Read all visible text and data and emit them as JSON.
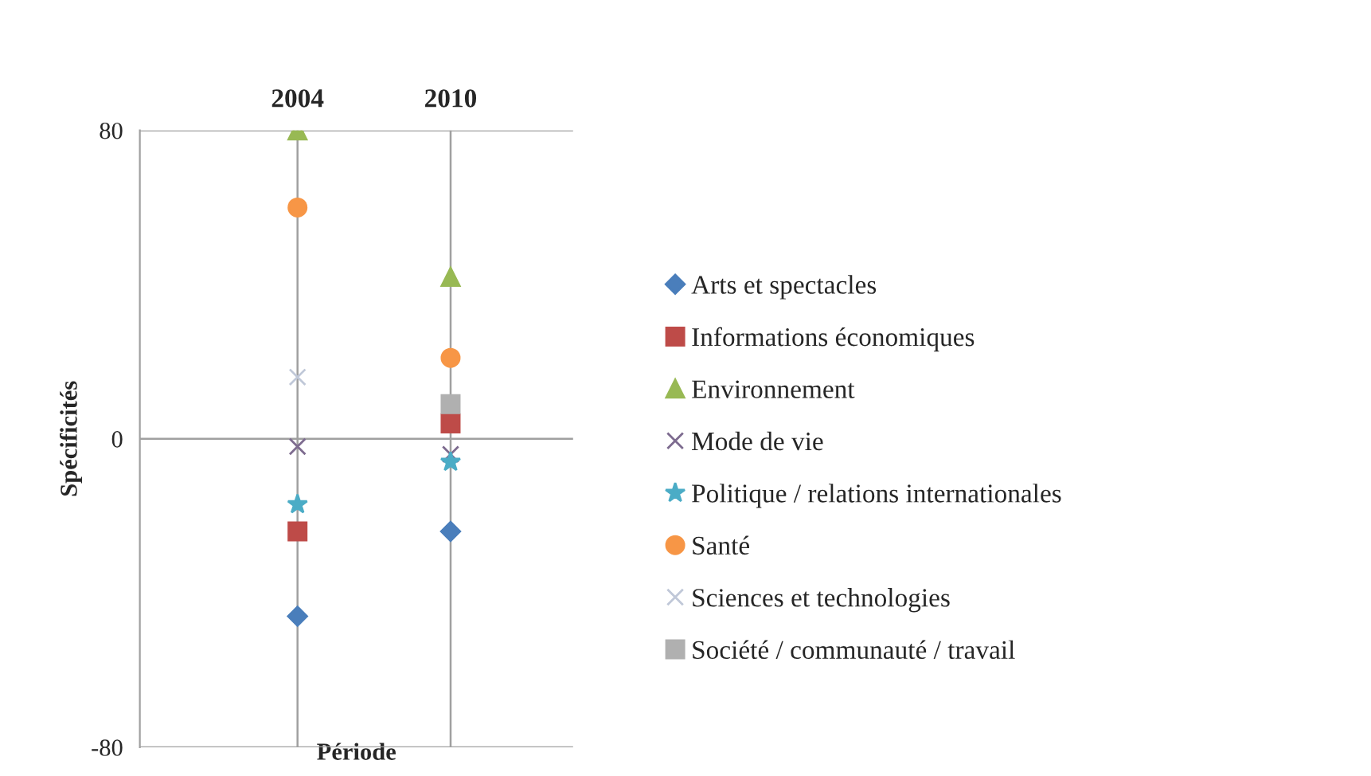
{
  "chart_data": {
    "type": "scatter",
    "xlabel": "Période",
    "ylabel": "Spécificités",
    "categories": [
      "2004",
      "2010"
    ],
    "ylim": [
      -80,
      80
    ],
    "yticks": [
      -80,
      0,
      80
    ],
    "grid": true,
    "legend": "right",
    "series": [
      {
        "name": "Arts et spectacles",
        "color": "#4a7ebb",
        "marker": "diamond",
        "values": [
          -46,
          -24
        ]
      },
      {
        "name": "Informations économiques",
        "color": "#be4b48",
        "marker": "square",
        "values": [
          -24,
          4
        ]
      },
      {
        "name": "Environnement",
        "color": "#98b954",
        "marker": "triangle",
        "values": [
          80,
          42
        ]
      },
      {
        "name": "Mode de vie",
        "color": "#7d6b8f",
        "marker": "cross",
        "values": [
          -2,
          -4
        ]
      },
      {
        "name": "Politique / relations internationales",
        "color": "#4bacc6",
        "marker": "star",
        "values": [
          -17,
          -6
        ]
      },
      {
        "name": "Santé",
        "color": "#f79646",
        "marker": "circle",
        "values": [
          60,
          21
        ]
      },
      {
        "name": "Sciences et technologies",
        "color": "#c0c8d8",
        "marker": "cross",
        "values": [
          16,
          null
        ]
      },
      {
        "name": "Société / communauté / travail",
        "color": "#b0b0b0",
        "marker": "square",
        "values": [
          null,
          9
        ]
      }
    ]
  }
}
